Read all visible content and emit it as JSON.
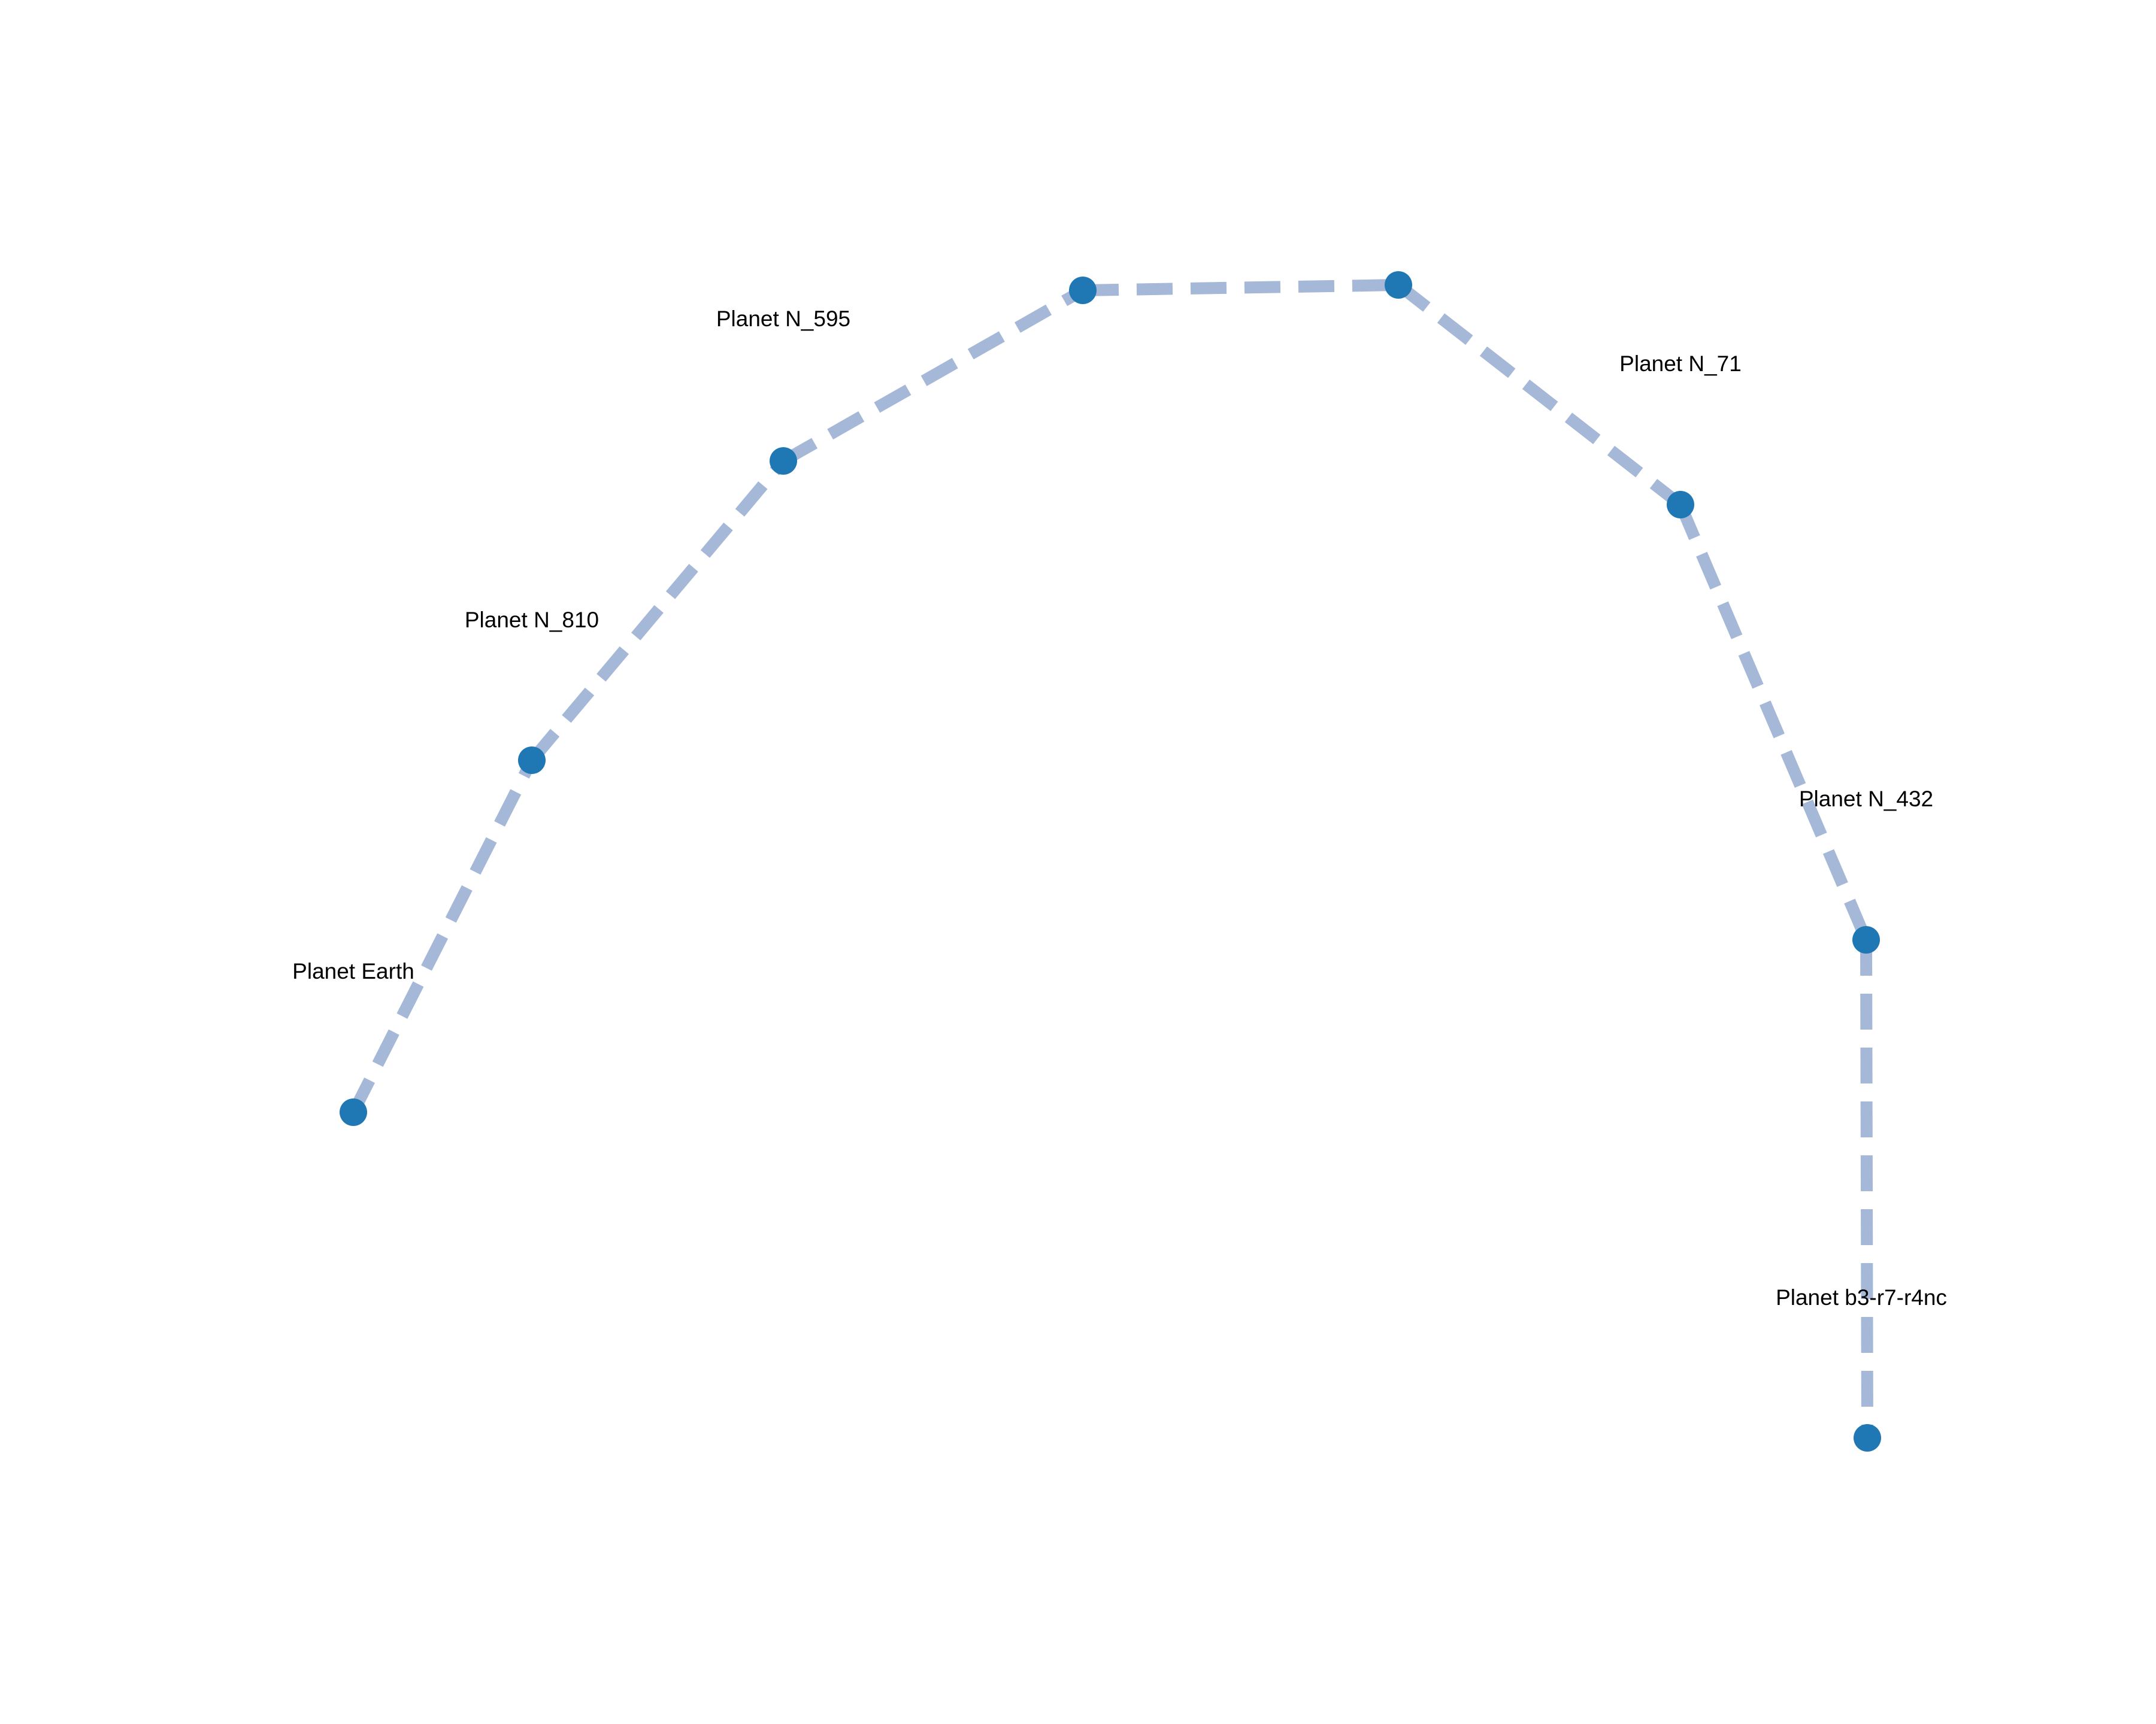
{
  "colors": {
    "node": "#1f77b4",
    "edge": "#a5b8d7",
    "label": "#000000",
    "background": "#ffffff"
  },
  "nodes": [
    {
      "id": "earth",
      "label": "Planet Earth"
    },
    {
      "id": "n810",
      "label": "Planet N_810"
    },
    {
      "id": "n595",
      "label": "Planet N_595"
    },
    {
      "id": "unlabeled-1",
      "label": ""
    },
    {
      "id": "unlabeled-2",
      "label": ""
    },
    {
      "id": "n71",
      "label": "Planet N_71"
    },
    {
      "id": "n432",
      "label": "Planet N_432"
    },
    {
      "id": "b3r7",
      "label": "Planet b3-r7-r4nc"
    }
  ],
  "edges": [
    [
      "earth",
      "n810"
    ],
    [
      "n810",
      "n595"
    ],
    [
      "n595",
      "unlabeled-1"
    ],
    [
      "unlabeled-1",
      "unlabeled-2"
    ],
    [
      "unlabeled-2",
      "n71"
    ],
    [
      "n71",
      "n432"
    ],
    [
      "n432",
      "b3r7"
    ]
  ]
}
